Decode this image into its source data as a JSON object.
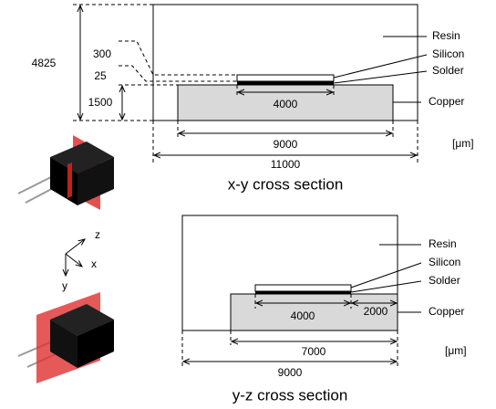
{
  "top": {
    "materials": [
      "Resin",
      "Silicon",
      "Solder",
      "Copper"
    ],
    "dimensions": [
      "4825",
      "300",
      "25",
      "1500",
      "4000",
      "9000",
      "11000"
    ],
    "unit": "[μm]",
    "caption": "x-y cross section"
  },
  "bottom": {
    "materials": [
      "Resin",
      "Silicon",
      "Solder",
      "Copper"
    ],
    "dimensions": [
      "4000",
      "2000",
      "7000",
      "9000"
    ],
    "unit": "[μm]",
    "caption": "y-z cross section"
  },
  "axes": [
    "z",
    "x",
    "y"
  ]
}
